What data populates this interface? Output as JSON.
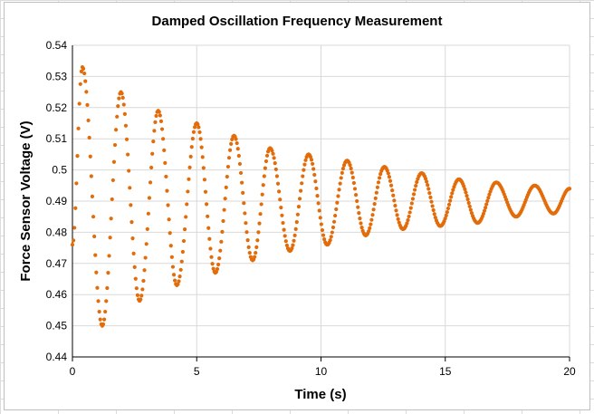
{
  "chart_data": {
    "type": "scatter",
    "title": "Damped Oscillation Frequency Measurement",
    "xlabel": "Time (s)",
    "ylabel": "Force Sensor Voltage (V)",
    "xlim": [
      0,
      20
    ],
    "ylim": [
      0.44,
      0.54
    ],
    "x_ticks": [
      "0",
      "5",
      "10",
      "15",
      "20"
    ],
    "y_ticks": [
      "0.44",
      "0.45",
      "0.46",
      "0.47",
      "0.48",
      "0.49",
      "0.5",
      "0.51",
      "0.52",
      "0.53",
      "0.54"
    ],
    "grid": true,
    "marker_color": "#E36C0A",
    "series": [
      {
        "x": [
          0,
          0.4,
          1.2,
          1.95,
          2.7,
          3.45,
          4.2,
          5.0,
          5.75,
          6.5,
          7.25,
          7.95,
          8.75,
          9.5,
          10.25,
          11.05,
          11.8,
          12.55,
          13.3,
          14.05,
          14.8,
          15.55,
          16.3,
          17.05,
          17.85,
          18.6,
          19.35,
          20.0
        ],
        "y": [
          0.476,
          0.533,
          0.45,
          0.525,
          0.458,
          0.519,
          0.463,
          0.515,
          0.467,
          0.511,
          0.471,
          0.507,
          0.474,
          0.505,
          0.476,
          0.503,
          0.479,
          0.501,
          0.481,
          0.499,
          0.482,
          0.497,
          0.483,
          0.496,
          0.485,
          0.495,
          0.486,
          0.494
        ]
      }
    ]
  }
}
